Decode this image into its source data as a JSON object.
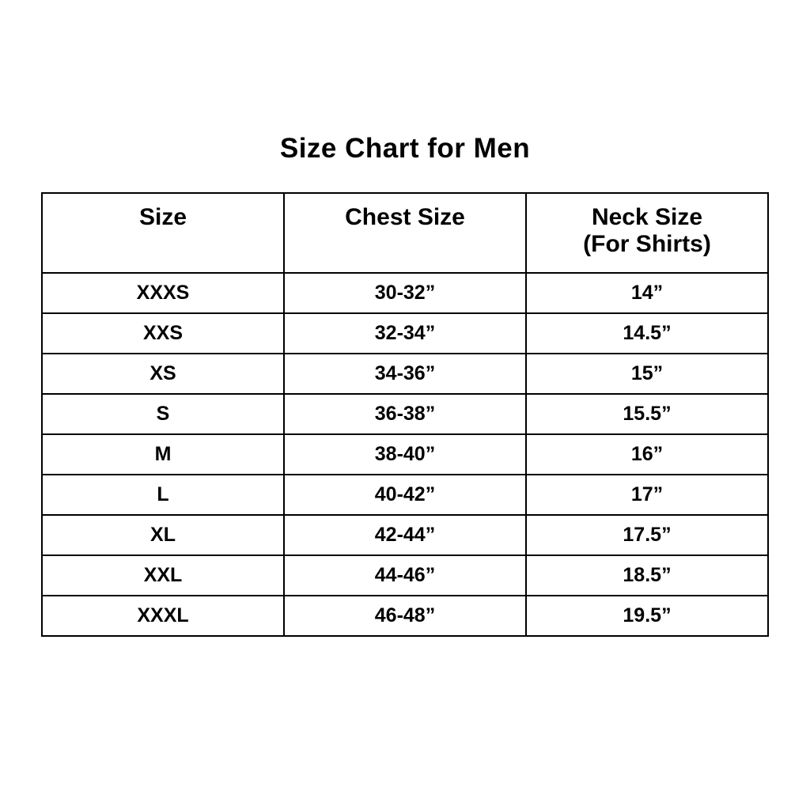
{
  "title": "Size Chart for Men",
  "colors": {
    "background": "#ffffff",
    "text": "#000000",
    "border": "#000000"
  },
  "table": {
    "header": {
      "size": "Size",
      "chest": "Chest Size",
      "neck_line1": "Neck Size",
      "neck_line2": "(For Shirts)"
    },
    "rows": [
      {
        "size": "XXXS",
        "chest": "30-32”",
        "neck": "14”"
      },
      {
        "size": "XXS",
        "chest": "32-34”",
        "neck": "14.5”"
      },
      {
        "size": "XS",
        "chest": "34-36”",
        "neck": "15”"
      },
      {
        "size": "S",
        "chest": "36-38”",
        "neck": "15.5”"
      },
      {
        "size": "M",
        "chest": "38-40”",
        "neck": "16”"
      },
      {
        "size": "L",
        "chest": "40-42”",
        "neck": "17”"
      },
      {
        "size": "XL",
        "chest": "42-44”",
        "neck": "17.5”"
      },
      {
        "size": "XXL",
        "chest": "44-46”",
        "neck": "18.5”"
      },
      {
        "size": "XXXL",
        "chest": "46-48”",
        "neck": "19.5”"
      }
    ]
  }
}
